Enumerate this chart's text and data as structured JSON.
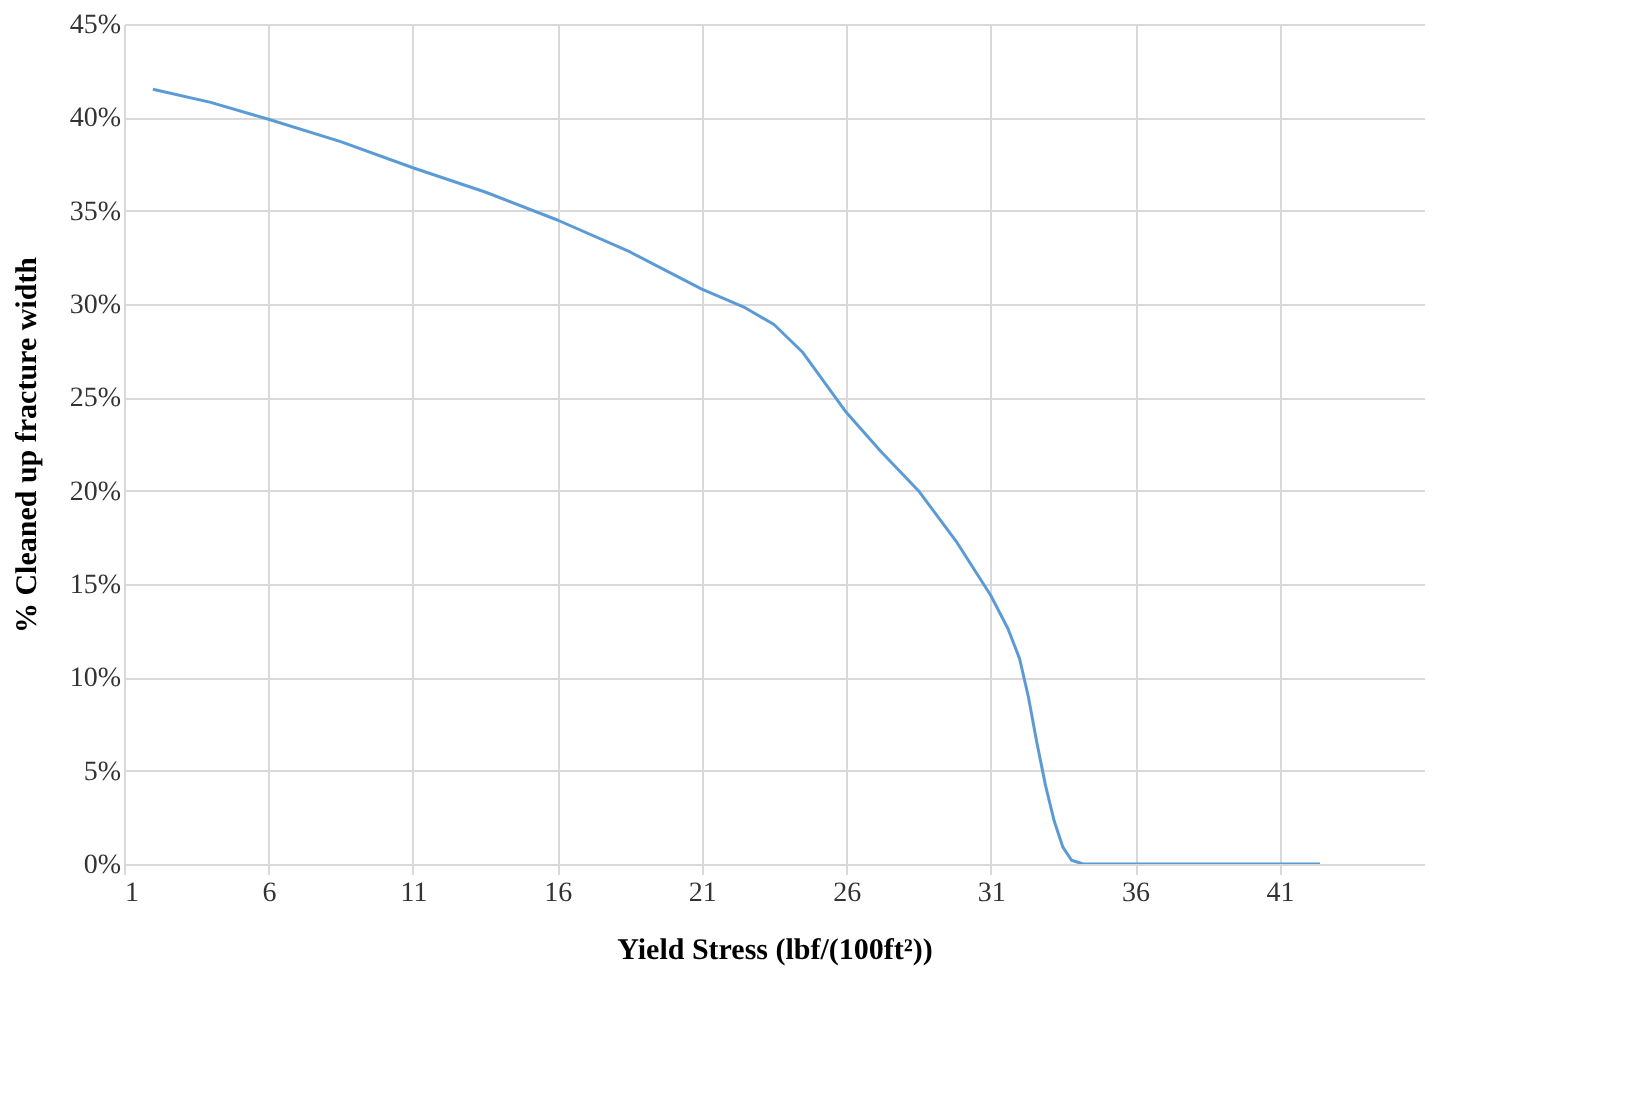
{
  "chart_data": {
    "type": "line",
    "xlabel": "Yield Stress (lbf/(100ft²))",
    "ylabel": "% Cleaned up fracture width",
    "x": [
      2,
      4,
      6,
      8.5,
      11,
      13.5,
      16,
      18.5,
      21,
      22.5,
      23.5,
      24.5,
      26,
      27.2,
      28.5,
      29.8,
      31,
      31.6,
      32,
      32.3,
      32.6,
      32.9,
      33.2,
      33.5,
      33.8,
      34.2,
      36,
      39,
      42.4
    ],
    "series": [
      {
        "color": "#5b9bd5",
        "values": [
          41.5,
          40.8,
          39.9,
          38.7,
          37.3,
          36.0,
          34.5,
          32.8,
          30.8,
          29.8,
          28.9,
          27.4,
          24.2,
          22.1,
          20.0,
          17.3,
          14.4,
          12.6,
          11.0,
          9.0,
          6.5,
          4.2,
          2.3,
          0.9,
          0.2,
          0,
          0,
          0,
          0
        ]
      }
    ],
    "xlim": [
      1,
      46
    ],
    "xticks": [
      1,
      6,
      11,
      16,
      21,
      26,
      31,
      36,
      41
    ],
    "ylim": [
      0,
      45
    ],
    "yticks": [
      {
        "value": 0,
        "label": "0%"
      },
      {
        "value": 5,
        "label": "5%"
      },
      {
        "value": 10,
        "label": "10%"
      },
      {
        "value": 15,
        "label": "15%"
      },
      {
        "value": 20,
        "label": "20%"
      },
      {
        "value": 25,
        "label": "25%"
      },
      {
        "value": 30,
        "label": "30%"
      },
      {
        "value": 35,
        "label": "35%"
      },
      {
        "value": 40,
        "label": "40%"
      },
      {
        "value": 45,
        "label": "45%"
      }
    ],
    "grid": true,
    "marker": "none",
    "line_style": "solid"
  }
}
